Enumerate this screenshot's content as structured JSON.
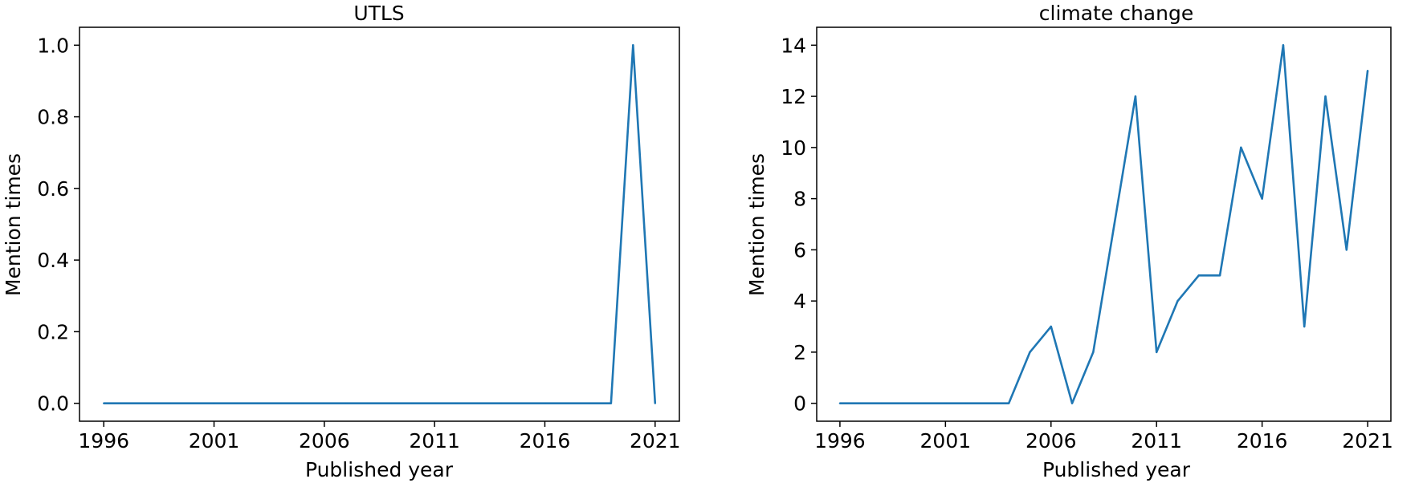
{
  "chart_data": [
    {
      "type": "line",
      "title": "UTLS",
      "xlabel": "Published year",
      "ylabel": "Mention times",
      "xlim": [
        1994.9,
        2022.1
      ],
      "ylim": [
        -0.05,
        1.05
      ],
      "xticks": [
        1996,
        2001,
        2006,
        2011,
        2016,
        2021
      ],
      "yticks": [
        0.0,
        0.2,
        0.4,
        0.6,
        0.8,
        1.0
      ],
      "ytick_labels": [
        "0.0",
        "0.2",
        "0.4",
        "0.6",
        "0.8",
        "1.0"
      ],
      "grid": false,
      "color": "#1f77b4",
      "x": [
        1996,
        1997,
        1998,
        1999,
        2000,
        2001,
        2002,
        2003,
        2004,
        2005,
        2006,
        2007,
        2008,
        2009,
        2010,
        2011,
        2012,
        2013,
        2014,
        2015,
        2016,
        2017,
        2018,
        2019,
        2020,
        2021
      ],
      "y": [
        0,
        0,
        0,
        0,
        0,
        0,
        0,
        0,
        0,
        0,
        0,
        0,
        0,
        0,
        0,
        0,
        0,
        0,
        0,
        0,
        0,
        0,
        0,
        0,
        1,
        0
      ]
    },
    {
      "type": "line",
      "title": "climate change",
      "xlabel": "Published year",
      "ylabel": "Mention times",
      "xlim": [
        1994.9,
        2022.1
      ],
      "ylim": [
        -0.7,
        14.7
      ],
      "xticks": [
        1996,
        2001,
        2006,
        2011,
        2016,
        2021
      ],
      "yticks": [
        0,
        2,
        4,
        6,
        8,
        10,
        12,
        14
      ],
      "ytick_labels": [
        "0",
        "2",
        "4",
        "6",
        "8",
        "10",
        "12",
        "14"
      ],
      "grid": false,
      "color": "#1f77b4",
      "x": [
        1996,
        1997,
        1998,
        1999,
        2000,
        2001,
        2002,
        2003,
        2004,
        2005,
        2006,
        2007,
        2008,
        2009,
        2010,
        2011,
        2012,
        2013,
        2014,
        2015,
        2016,
        2017,
        2018,
        2019,
        2020,
        2021
      ],
      "y": [
        0,
        0,
        0,
        0,
        0,
        0,
        0,
        0,
        0,
        2,
        3,
        0,
        2,
        7,
        12,
        2,
        4,
        5,
        5,
        10,
        8,
        14,
        3,
        12,
        6,
        13
      ]
    }
  ]
}
